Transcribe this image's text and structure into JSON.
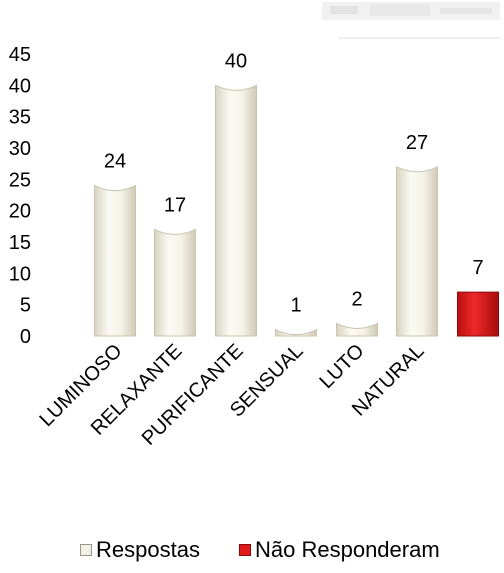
{
  "chart_data": {
    "type": "bar",
    "title": "",
    "xlabel": "",
    "ylabel": "",
    "ylim": [
      0,
      45
    ],
    "yticks": [
      "0",
      "5",
      "10",
      "15",
      "20",
      "25",
      "30",
      "35",
      "40",
      "45"
    ],
    "grid": false,
    "legend_position": "bottom",
    "series": [
      {
        "name": "Respostas",
        "color": "#f2f0e4",
        "categories": [
          "LUMINOSO",
          "RELAXANTE",
          "PURIFICANTE",
          "SENSUAL",
          "LUTO",
          "NATURAL"
        ],
        "values": [
          24,
          17,
          40,
          1,
          2,
          27
        ],
        "labels": [
          "24",
          "17",
          "40",
          "1",
          "2",
          "27"
        ]
      },
      {
        "name": "Não Responderam",
        "color": "#e01b1b",
        "categories": [
          ""
        ],
        "values": [
          7
        ],
        "labels": [
          "7"
        ]
      }
    ]
  }
}
